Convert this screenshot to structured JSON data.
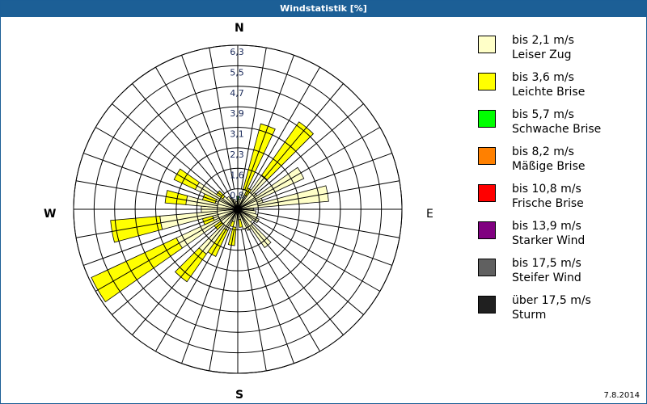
{
  "window": {
    "title": "Windstatistik [%]"
  },
  "footer": {
    "date": "7.8.2014"
  },
  "cardinals": {
    "n": "N",
    "e": "E",
    "s": "S",
    "w": "W"
  },
  "legend": [
    {
      "range": "bis 2,1 m/s",
      "name": "Leiser Zug",
      "color": "#ffffc8"
    },
    {
      "range": "bis 3,6 m/s",
      "name": "Leichte Brise",
      "color": "#ffff00"
    },
    {
      "range": "bis 5,7 m/s",
      "name": "Schwache Brise",
      "color": "#00ff00"
    },
    {
      "range": "bis 8,2 m/s",
      "name": "Mäßige Brise",
      "color": "#ff8000"
    },
    {
      "range": "bis 10,8 m/s",
      "name": "Frische Brise",
      "color": "#ff0000"
    },
    {
      "range": "bis 13,9 m/s",
      "name": "Starker Wind",
      "color": "#800080"
    },
    {
      "range": "bis 17,5 m/s",
      "name": "Steifer Wind",
      "color": "#606060"
    },
    {
      "range": "über 17,5 m/s",
      "name": "Sturm",
      "color": "#202020"
    }
  ],
  "chart_data": {
    "type": "wind-rose",
    "title": "Windstatistik [%]",
    "unit": "%",
    "radial_ticks": [
      "0,8",
      "1,6",
      "2,3",
      "3,1",
      "3,9",
      "4,7",
      "5,5",
      "6,3"
    ],
    "radial_max": 6.3,
    "sector_width_deg": 10,
    "series_names": [
      "Leiser Zug",
      "Leichte Brise",
      "Schwache Brise"
    ],
    "sectors": [
      {
        "dir": 0,
        "values": [
          0.2,
          0.0,
          0.3
        ]
      },
      {
        "dir": 10,
        "values": [
          0.4,
          0.0,
          0.0
        ]
      },
      {
        "dir": 20,
        "values": [
          0.8,
          2.6,
          0.0
        ]
      },
      {
        "dir": 30,
        "values": [
          0.6,
          0.3,
          0.0
        ]
      },
      {
        "dir": 40,
        "values": [
          1.6,
          2.5,
          0.0
        ]
      },
      {
        "dir": 50,
        "values": [
          0.9,
          0.0,
          0.0
        ]
      },
      {
        "dir": 60,
        "values": [
          2.8,
          0.0,
          0.0
        ]
      },
      {
        "dir": 70,
        "values": [
          1.0,
          0.0,
          0.0
        ]
      },
      {
        "dir": 80,
        "values": [
          3.5,
          0.0,
          0.0
        ]
      },
      {
        "dir": 90,
        "values": [
          0.6,
          0.0,
          0.0
        ]
      },
      {
        "dir": 100,
        "values": [
          0.7,
          0.0,
          0.0
        ]
      },
      {
        "dir": 110,
        "values": [
          0.8,
          0.0,
          0.0
        ]
      },
      {
        "dir": 120,
        "values": [
          0.9,
          0.0,
          0.0
        ]
      },
      {
        "dir": 130,
        "values": [
          0.7,
          0.0,
          0.0
        ]
      },
      {
        "dir": 140,
        "values": [
          1.8,
          0.0,
          0.0
        ]
      },
      {
        "dir": 150,
        "values": [
          0.9,
          0.0,
          0.0
        ]
      },
      {
        "dir": 160,
        "values": [
          0.8,
          0.0,
          0.0
        ]
      },
      {
        "dir": 170,
        "values": [
          0.4,
          0.3,
          0.0
        ]
      },
      {
        "dir": 180,
        "values": [
          0.3,
          0.0,
          0.0
        ]
      },
      {
        "dir": 190,
        "values": [
          0.7,
          0.7,
          0.0
        ]
      },
      {
        "dir": 200,
        "values": [
          0.5,
          0.2,
          0.0
        ]
      },
      {
        "dir": 210,
        "values": [
          0.9,
          1.1,
          0.0
        ]
      },
      {
        "dir": 220,
        "values": [
          2.1,
          1.3,
          0.0
        ]
      },
      {
        "dir": 230,
        "values": [
          0.8,
          0.3,
          0.0
        ]
      },
      {
        "dir": 240,
        "values": [
          2.6,
          3.6,
          0.0
        ]
      },
      {
        "dir": 250,
        "values": [
          1.0,
          0.4,
          0.0
        ]
      },
      {
        "dir": 260,
        "values": [
          3.0,
          1.9,
          0.0
        ]
      },
      {
        "dir": 270,
        "values": [
          1.4,
          0.0,
          0.0
        ]
      },
      {
        "dir": 280,
        "values": [
          2.0,
          0.8,
          0.0
        ]
      },
      {
        "dir": 290,
        "values": [
          0.9,
          0.5,
          0.0
        ]
      },
      {
        "dir": 300,
        "values": [
          1.8,
          0.9,
          0.0
        ]
      },
      {
        "dir": 310,
        "values": [
          0.7,
          0.3,
          0.0
        ]
      },
      {
        "dir": 320,
        "values": [
          0.6,
          0.0,
          0.0
        ]
      },
      {
        "dir": 330,
        "values": [
          0.5,
          0.0,
          0.0
        ]
      },
      {
        "dir": 340,
        "values": [
          0.4,
          0.0,
          0.0
        ]
      },
      {
        "dir": 350,
        "values": [
          0.3,
          0.0,
          0.0
        ]
      }
    ],
    "legend_position": "right",
    "grid": true
  }
}
